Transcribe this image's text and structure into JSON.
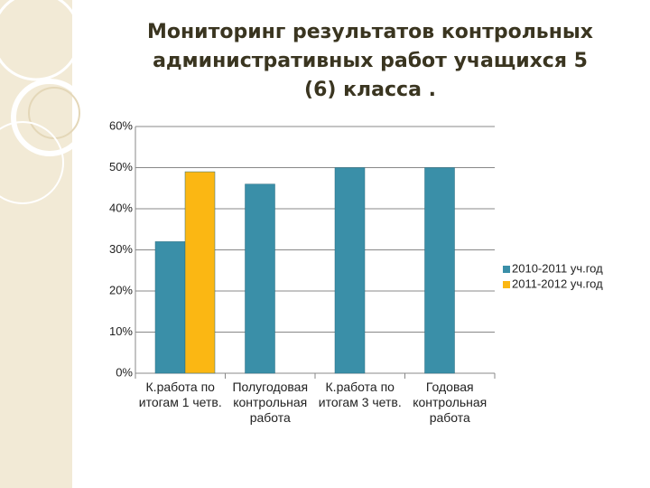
{
  "chart_data": {
    "type": "bar",
    "title": "Мониторинг  результатов контрольных административных работ учащихся 5 (6) класса .",
    "categories": [
      "К.работа по итогам 1 четв.",
      "Полугодовая контрольная работа",
      "К.работа по итогам 3 четв.",
      "Годовая контрольная работа"
    ],
    "series": [
      {
        "name": "2010-2011 уч.год",
        "color": "#3a8fa8",
        "values": [
          32,
          46,
          50,
          50
        ]
      },
      {
        "name": "2011-2012 уч.год",
        "color": "#fbb713",
        "values": [
          49,
          null,
          null,
          null
        ]
      }
    ],
    "ylim": [
      0,
      60
    ],
    "yticks": [
      {
        "value": 0,
        "label": "0%"
      },
      {
        "value": 10,
        "label": "10%"
      },
      {
        "value": 20,
        "label": "20%"
      },
      {
        "value": 30,
        "label": "30%"
      },
      {
        "value": 40,
        "label": "40%"
      },
      {
        "value": 50,
        "label": "50%"
      },
      {
        "value": 60,
        "label": "60%"
      }
    ],
    "grid": true,
    "legend": "right"
  }
}
